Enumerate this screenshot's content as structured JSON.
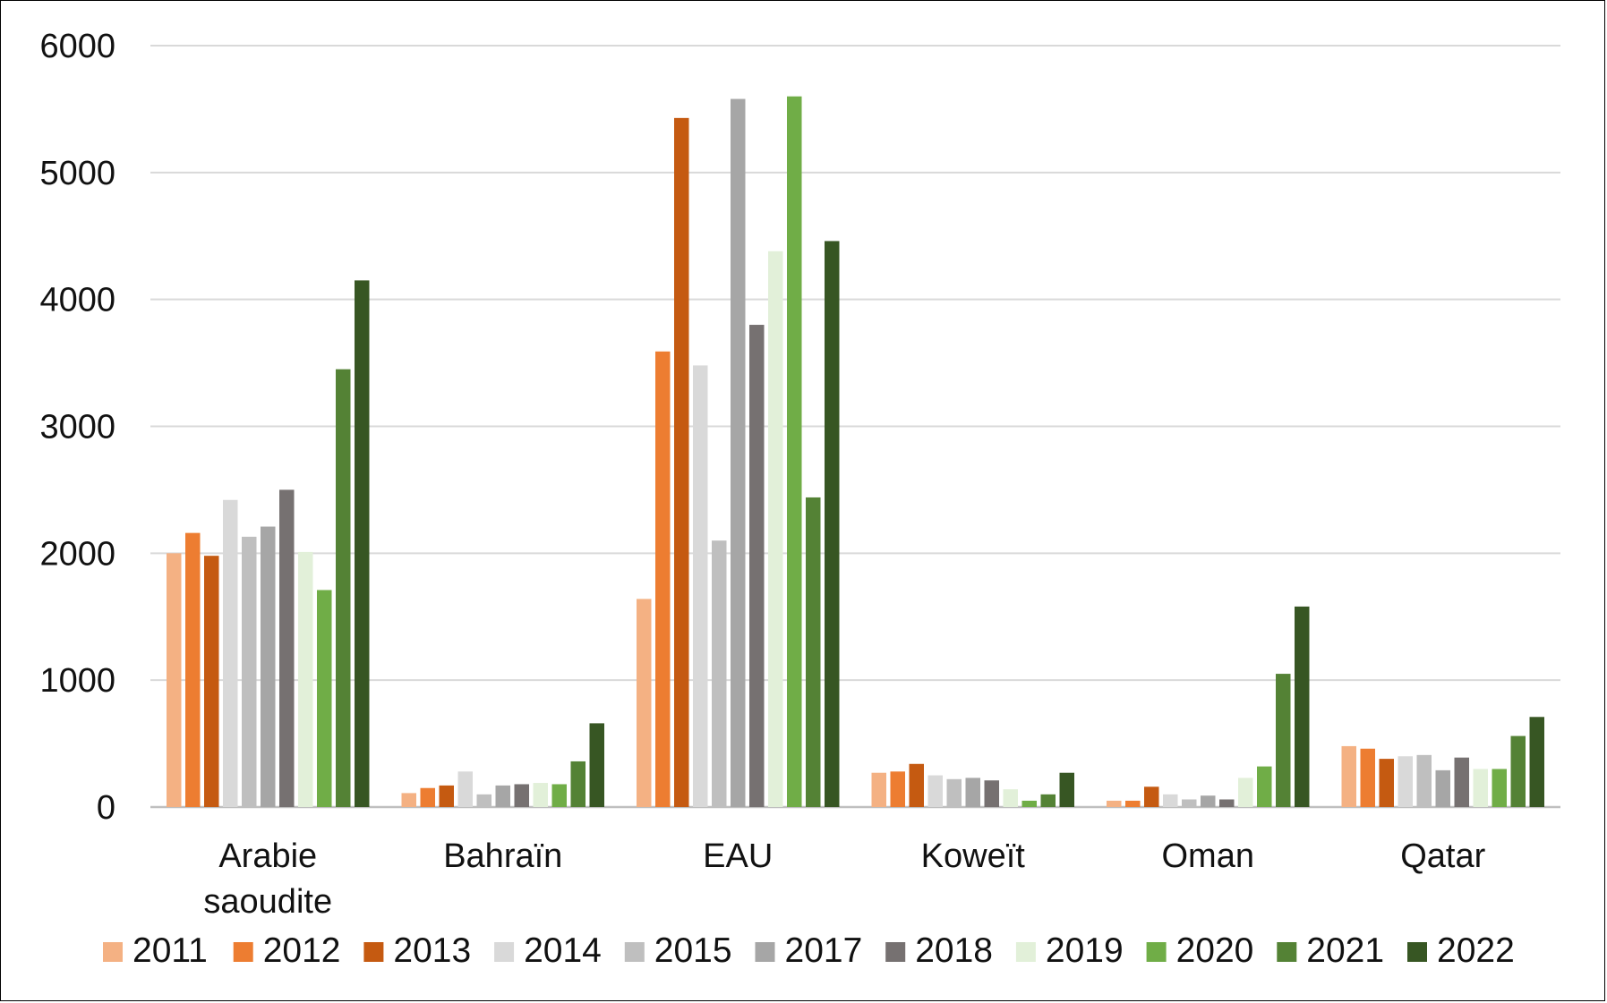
{
  "chart_data": {
    "type": "bar",
    "categories": [
      [
        "Arabie",
        "saoudite"
      ],
      [
        "Bahraïn"
      ],
      [
        "EAU"
      ],
      [
        "Koweït"
      ],
      [
        "Oman"
      ],
      [
        "Qatar"
      ]
    ],
    "ylim": [
      0,
      6000
    ],
    "yticks": [
      0,
      1000,
      2000,
      3000,
      4000,
      5000,
      6000
    ],
    "grid": true,
    "legend_position": "bottom",
    "series": [
      {
        "name": "2011",
        "color": "#F4B183",
        "values": [
          2000,
          110,
          1640,
          270,
          50,
          480
        ]
      },
      {
        "name": "2012",
        "color": "#ED7D31",
        "values": [
          2160,
          150,
          3590,
          280,
          50,
          460
        ]
      },
      {
        "name": "2013",
        "color": "#C55A11",
        "values": [
          1980,
          170,
          5430,
          340,
          160,
          380
        ]
      },
      {
        "name": "2014",
        "color": "#D9D9D9",
        "values": [
          2420,
          280,
          3480,
          250,
          100,
          400
        ]
      },
      {
        "name": "2015",
        "color": "#BFBFBF",
        "values": [
          2130,
          100,
          2100,
          220,
          60,
          410
        ]
      },
      {
        "name": "2017",
        "color": "#A6A6A6",
        "values": [
          2210,
          170,
          5580,
          230,
          90,
          290
        ]
      },
      {
        "name": "2018",
        "color": "#767171",
        "values": [
          2500,
          180,
          3800,
          210,
          60,
          390
        ]
      },
      {
        "name": "2019",
        "color": "#E2F0D9",
        "values": [
          2010,
          190,
          4380,
          140,
          230,
          300
        ]
      },
      {
        "name": "2020",
        "color": "#70AD47",
        "values": [
          1710,
          180,
          5600,
          50,
          320,
          300
        ]
      },
      {
        "name": "2021",
        "color": "#548235",
        "values": [
          3450,
          360,
          2440,
          100,
          1050,
          560
        ]
      },
      {
        "name": "2022",
        "color": "#375623",
        "values": [
          4150,
          660,
          4460,
          270,
          1580,
          710
        ]
      }
    ]
  }
}
